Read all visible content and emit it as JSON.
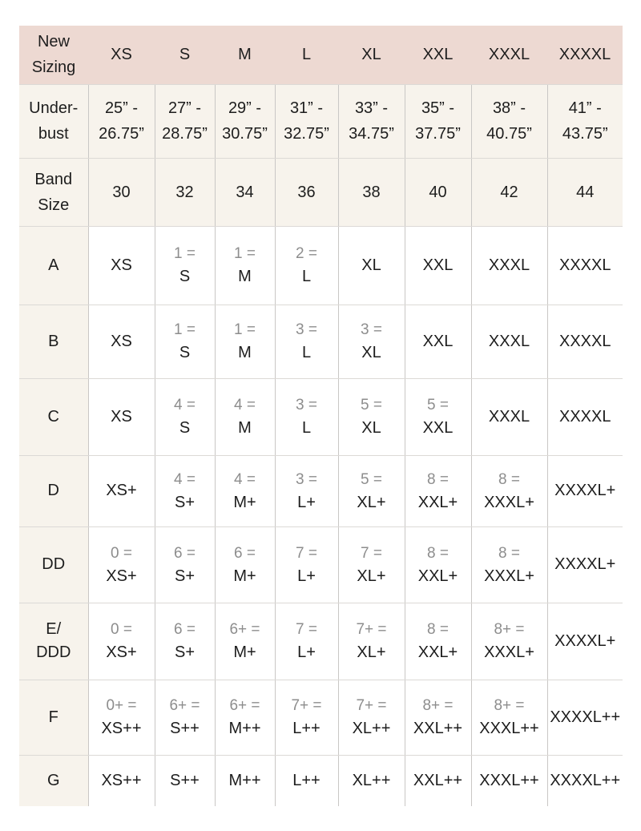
{
  "colors": {
    "header_bg": "#edd9d2",
    "shaded_bg": "#f7f3ec",
    "cell_bg": "#ffffff",
    "grid_vertical": "#c9c7c5",
    "grid_horizontal": "#dcd9d6",
    "text": "#1d1d1d",
    "muted_text": "#8d8d8d"
  },
  "chart_data": {
    "type": "table",
    "title": "New sizing conversion chart",
    "header": {
      "corner_lines": [
        "New",
        "Sizing"
      ],
      "columns": [
        "XS",
        "S",
        "M",
        "L",
        "XL",
        "XXL",
        "XXXL",
        "XXXXL"
      ]
    },
    "rows": [
      {
        "label_lines": [
          "Under-",
          "bust"
        ],
        "shaded": true,
        "cells": [
          {
            "lines": [
              {
                "text": "25” -",
                "tone": "dark"
              },
              {
                "text": "26.75”",
                "tone": "dark"
              }
            ]
          },
          {
            "lines": [
              {
                "text": "27” -",
                "tone": "dark"
              },
              {
                "text": "28.75”",
                "tone": "dark"
              }
            ]
          },
          {
            "lines": [
              {
                "text": "29” -",
                "tone": "dark"
              },
              {
                "text": "30.75”",
                "tone": "dark"
              }
            ]
          },
          {
            "lines": [
              {
                "text": "31” -",
                "tone": "dark"
              },
              {
                "text": "32.75”",
                "tone": "dark"
              }
            ]
          },
          {
            "lines": [
              {
                "text": "33” -",
                "tone": "dark"
              },
              {
                "text": "34.75”",
                "tone": "dark"
              }
            ]
          },
          {
            "lines": [
              {
                "text": "35” -",
                "tone": "dark"
              },
              {
                "text": "37.75”",
                "tone": "dark"
              }
            ]
          },
          {
            "lines": [
              {
                "text": "38” -",
                "tone": "dark"
              },
              {
                "text": "40.75”",
                "tone": "dark"
              }
            ]
          },
          {
            "lines": [
              {
                "text": "41” -",
                "tone": "dark"
              },
              {
                "text": "43.75”",
                "tone": "dark"
              }
            ]
          }
        ]
      },
      {
        "label_lines": [
          "Band",
          "Size"
        ],
        "shaded": true,
        "cells": [
          {
            "lines": [
              {
                "text": "30",
                "tone": "dark"
              }
            ]
          },
          {
            "lines": [
              {
                "text": "32",
                "tone": "dark"
              }
            ]
          },
          {
            "lines": [
              {
                "text": "34",
                "tone": "dark"
              }
            ]
          },
          {
            "lines": [
              {
                "text": "36",
                "tone": "dark"
              }
            ]
          },
          {
            "lines": [
              {
                "text": "38",
                "tone": "dark"
              }
            ]
          },
          {
            "lines": [
              {
                "text": "40",
                "tone": "dark"
              }
            ]
          },
          {
            "lines": [
              {
                "text": "42",
                "tone": "dark"
              }
            ]
          },
          {
            "lines": [
              {
                "text": "44",
                "tone": "dark"
              }
            ]
          }
        ]
      },
      {
        "label_lines": [
          "A"
        ],
        "shaded": false,
        "cells": [
          {
            "lines": [
              {
                "text": "XS",
                "tone": "dark"
              }
            ]
          },
          {
            "lines": [
              {
                "text": "1 =",
                "tone": "gray"
              },
              {
                "text": "S",
                "tone": "dark"
              }
            ]
          },
          {
            "lines": [
              {
                "text": "1 =",
                "tone": "gray"
              },
              {
                "text": "M",
                "tone": "dark"
              }
            ]
          },
          {
            "lines": [
              {
                "text": "2 =",
                "tone": "gray"
              },
              {
                "text": "L",
                "tone": "dark"
              }
            ]
          },
          {
            "lines": [
              {
                "text": "XL",
                "tone": "dark"
              }
            ]
          },
          {
            "lines": [
              {
                "text": "XXL",
                "tone": "dark"
              }
            ]
          },
          {
            "lines": [
              {
                "text": "XXXL",
                "tone": "dark"
              }
            ]
          },
          {
            "lines": [
              {
                "text": "XXXXL",
                "tone": "dark"
              }
            ]
          }
        ]
      },
      {
        "label_lines": [
          "B"
        ],
        "shaded": false,
        "cells": [
          {
            "lines": [
              {
                "text": "XS",
                "tone": "dark"
              }
            ]
          },
          {
            "lines": [
              {
                "text": "1 =",
                "tone": "gray"
              },
              {
                "text": "S",
                "tone": "dark"
              }
            ]
          },
          {
            "lines": [
              {
                "text": "1 =",
                "tone": "gray"
              },
              {
                "text": "M",
                "tone": "dark"
              }
            ]
          },
          {
            "lines": [
              {
                "text": "3 =",
                "tone": "gray"
              },
              {
                "text": "L",
                "tone": "dark"
              }
            ]
          },
          {
            "lines": [
              {
                "text": "3 =",
                "tone": "gray"
              },
              {
                "text": "XL",
                "tone": "dark"
              }
            ]
          },
          {
            "lines": [
              {
                "text": "XXL",
                "tone": "dark"
              }
            ]
          },
          {
            "lines": [
              {
                "text": "XXXL",
                "tone": "dark"
              }
            ]
          },
          {
            "lines": [
              {
                "text": "XXXXL",
                "tone": "dark"
              }
            ]
          }
        ]
      },
      {
        "label_lines": [
          "C"
        ],
        "shaded": false,
        "cells": [
          {
            "lines": [
              {
                "text": "XS",
                "tone": "dark"
              }
            ]
          },
          {
            "lines": [
              {
                "text": "4 =",
                "tone": "gray"
              },
              {
                "text": "S",
                "tone": "dark"
              }
            ]
          },
          {
            "lines": [
              {
                "text": "4 =",
                "tone": "gray"
              },
              {
                "text": "M",
                "tone": "dark"
              }
            ]
          },
          {
            "lines": [
              {
                "text": "3 =",
                "tone": "gray"
              },
              {
                "text": "L",
                "tone": "dark"
              }
            ]
          },
          {
            "lines": [
              {
                "text": "5 =",
                "tone": "gray"
              },
              {
                "text": "XL",
                "tone": "dark"
              }
            ]
          },
          {
            "lines": [
              {
                "text": "5 =",
                "tone": "gray"
              },
              {
                "text": "XXL",
                "tone": "dark"
              }
            ]
          },
          {
            "lines": [
              {
                "text": "XXXL",
                "tone": "dark"
              }
            ]
          },
          {
            "lines": [
              {
                "text": "XXXXL",
                "tone": "dark"
              }
            ]
          }
        ]
      },
      {
        "label_lines": [
          "D"
        ],
        "shaded": false,
        "cells": [
          {
            "lines": [
              {
                "text": "XS+",
                "tone": "dark"
              }
            ]
          },
          {
            "lines": [
              {
                "text": "4 =",
                "tone": "gray"
              },
              {
                "text": "S+",
                "tone": "dark"
              }
            ]
          },
          {
            "lines": [
              {
                "text": "4 =",
                "tone": "gray"
              },
              {
                "text": "M+",
                "tone": "dark"
              }
            ]
          },
          {
            "lines": [
              {
                "text": "3 =",
                "tone": "gray"
              },
              {
                "text": "L+",
                "tone": "dark"
              }
            ]
          },
          {
            "lines": [
              {
                "text": "5 =",
                "tone": "gray"
              },
              {
                "text": "XL+",
                "tone": "dark"
              }
            ]
          },
          {
            "lines": [
              {
                "text": "8 =",
                "tone": "gray"
              },
              {
                "text": "XXL+",
                "tone": "dark"
              }
            ]
          },
          {
            "lines": [
              {
                "text": "8 =",
                "tone": "gray"
              },
              {
                "text": "XXXL+",
                "tone": "dark"
              }
            ]
          },
          {
            "lines": [
              {
                "text": "XXXXL+",
                "tone": "dark"
              }
            ]
          }
        ]
      },
      {
        "label_lines": [
          "DD"
        ],
        "shaded": false,
        "cells": [
          {
            "lines": [
              {
                "text": "0 =",
                "tone": "gray"
              },
              {
                "text": "XS+",
                "tone": "dark"
              }
            ]
          },
          {
            "lines": [
              {
                "text": "6 =",
                "tone": "gray"
              },
              {
                "text": "S+",
                "tone": "dark"
              }
            ]
          },
          {
            "lines": [
              {
                "text": "6 =",
                "tone": "gray"
              },
              {
                "text": "M+",
                "tone": "dark"
              }
            ]
          },
          {
            "lines": [
              {
                "text": "7 =",
                "tone": "gray"
              },
              {
                "text": "L+",
                "tone": "dark"
              }
            ]
          },
          {
            "lines": [
              {
                "text": "7 =",
                "tone": "gray"
              },
              {
                "text": "XL+",
                "tone": "dark"
              }
            ]
          },
          {
            "lines": [
              {
                "text": "8 =",
                "tone": "gray"
              },
              {
                "text": "XXL+",
                "tone": "dark"
              }
            ]
          },
          {
            "lines": [
              {
                "text": "8 =",
                "tone": "gray"
              },
              {
                "text": "XXXL+",
                "tone": "dark"
              }
            ]
          },
          {
            "lines": [
              {
                "text": "XXXXL+",
                "tone": "dark"
              }
            ]
          }
        ]
      },
      {
        "label_lines": [
          "E/",
          "DDD"
        ],
        "shaded": false,
        "cells": [
          {
            "lines": [
              {
                "text": "0 =",
                "tone": "gray"
              },
              {
                "text": "XS+",
                "tone": "dark"
              }
            ]
          },
          {
            "lines": [
              {
                "text": "6 =",
                "tone": "gray"
              },
              {
                "text": "S+",
                "tone": "dark"
              }
            ]
          },
          {
            "lines": [
              {
                "text": "6+ =",
                "tone": "gray"
              },
              {
                "text": "M+",
                "tone": "dark"
              }
            ]
          },
          {
            "lines": [
              {
                "text": "7 =",
                "tone": "gray"
              },
              {
                "text": "L+",
                "tone": "dark"
              }
            ]
          },
          {
            "lines": [
              {
                "text": "7+ =",
                "tone": "gray"
              },
              {
                "text": "XL+",
                "tone": "dark"
              }
            ]
          },
          {
            "lines": [
              {
                "text": "8 =",
                "tone": "gray"
              },
              {
                "text": "XXL+",
                "tone": "dark"
              }
            ]
          },
          {
            "lines": [
              {
                "text": "8+ =",
                "tone": "gray"
              },
              {
                "text": "XXXL+",
                "tone": "dark"
              }
            ]
          },
          {
            "lines": [
              {
                "text": "XXXXL+",
                "tone": "dark"
              }
            ]
          }
        ]
      },
      {
        "label_lines": [
          "F"
        ],
        "shaded": false,
        "cells": [
          {
            "lines": [
              {
                "text": "0+ =",
                "tone": "gray"
              },
              {
                "text": "XS++",
                "tone": "dark"
              }
            ]
          },
          {
            "lines": [
              {
                "text": "6+ =",
                "tone": "gray"
              },
              {
                "text": "S++",
                "tone": "dark"
              }
            ]
          },
          {
            "lines": [
              {
                "text": "6+ =",
                "tone": "gray"
              },
              {
                "text": "M++",
                "tone": "dark"
              }
            ]
          },
          {
            "lines": [
              {
                "text": "7+ =",
                "tone": "gray"
              },
              {
                "text": "L++",
                "tone": "dark"
              }
            ]
          },
          {
            "lines": [
              {
                "text": "7+ =",
                "tone": "gray"
              },
              {
                "text": "XL++",
                "tone": "dark"
              }
            ]
          },
          {
            "lines": [
              {
                "text": "8+ =",
                "tone": "gray"
              },
              {
                "text": "XXL++",
                "tone": "dark"
              }
            ]
          },
          {
            "lines": [
              {
                "text": "8+ =",
                "tone": "gray"
              },
              {
                "text": "XXXL++",
                "tone": "dark"
              }
            ]
          },
          {
            "lines": [
              {
                "text": "XXXXL++",
                "tone": "dark"
              }
            ]
          }
        ]
      },
      {
        "label_lines": [
          "G"
        ],
        "shaded": false,
        "cells": [
          {
            "lines": [
              {
                "text": "XS++",
                "tone": "dark"
              }
            ]
          },
          {
            "lines": [
              {
                "text": "S++",
                "tone": "dark"
              }
            ]
          },
          {
            "lines": [
              {
                "text": "M++",
                "tone": "dark"
              }
            ]
          },
          {
            "lines": [
              {
                "text": "L++",
                "tone": "dark"
              }
            ]
          },
          {
            "lines": [
              {
                "text": "XL++",
                "tone": "dark"
              }
            ]
          },
          {
            "lines": [
              {
                "text": "XXL++",
                "tone": "dark"
              }
            ]
          },
          {
            "lines": [
              {
                "text": "XXXL++",
                "tone": "dark"
              }
            ]
          },
          {
            "lines": [
              {
                "text": "XXXXL++",
                "tone": "dark"
              }
            ]
          }
        ]
      }
    ]
  }
}
